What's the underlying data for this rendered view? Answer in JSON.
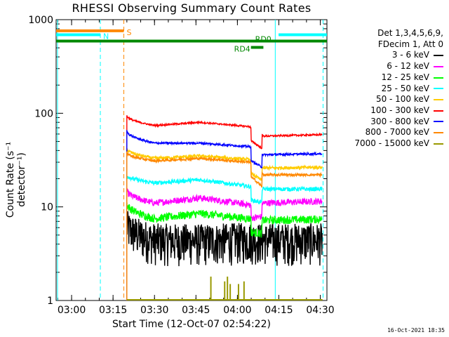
{
  "chart_data": {
    "type": "line",
    "title": "RHESSI Observing Summary Count Rates",
    "xlabel": "Start Time (12-Oct-07 02:54:22)",
    "ylabel": "Count Rate (s⁻¹ detector⁻¹)",
    "yscale": "log",
    "ylim": [
      1,
      1000
    ],
    "xlim_minutes_after_start": [
      0,
      98
    ],
    "x_ticks": [
      "03:00",
      "03:15",
      "03:30",
      "03:45",
      "04:00",
      "04:15",
      "04:30"
    ],
    "x_tick_minutes": [
      5.6,
      20.6,
      35.6,
      50.6,
      65.6,
      80.6,
      95.6
    ],
    "y_ticks": [
      "1",
      "10",
      "100",
      "1000"
    ],
    "y_tick_values": [
      1,
      10,
      100,
      1000
    ],
    "legend_header": [
      "Det 1,3,4,5,6,9,",
      "FDecim 1, Att 0"
    ],
    "legend_placement": "right",
    "data_start_minute": 25.6,
    "dip_range_minutes": [
      70.5,
      74.5
    ],
    "series": [
      {
        "name": "3 - 6 keV",
        "color": "#000000",
        "levels": [
          6.5,
          4.5,
          4.4,
          4.6,
          4.5,
          4.5
        ],
        "noise": 0.22
      },
      {
        "name": "6 - 12 keV",
        "color": "#ff00ff",
        "levels": [
          15,
          11,
          12.5,
          10.5,
          11,
          11.5
        ],
        "noise": 0.08
      },
      {
        "name": "12 - 25 keV",
        "color": "#00ff00",
        "levels": [
          11,
          7.5,
          8.5,
          7.5,
          7.2,
          7.4
        ],
        "noise": 0.1
      },
      {
        "name": "25 - 50 keV",
        "color": "#00ffff",
        "levels": [
          22,
          18,
          19.5,
          16.5,
          15.5,
          15.5
        ],
        "noise": 0.05
      },
      {
        "name": "50 - 100 keV",
        "color": "#ffcc00",
        "levels": [
          42,
          33,
          35,
          32,
          26,
          26.5
        ],
        "noise": 0.04
      },
      {
        "name": "100 - 300 keV",
        "color": "#ff0000",
        "levels": [
          95,
          74,
          80,
          72,
          57,
          59
        ],
        "noise": 0.02
      },
      {
        "name": "300 - 800 keV",
        "color": "#0000ff",
        "levels": [
          65,
          48,
          48,
          44,
          36,
          37
        ],
        "noise": 0.025
      },
      {
        "name": "800 - 7000 keV",
        "color": "#ff8800",
        "levels": [
          38,
          31,
          33,
          30,
          22,
          22
        ],
        "noise": 0.03
      },
      {
        "name": "7000 - 15000 keV",
        "color": "#999900",
        "levels": [
          0,
          0,
          0,
          0,
          0,
          0
        ],
        "noise": 0
      }
    ],
    "level_minutes": [
      25.6,
      35.6,
      52,
      70,
      75,
      96
    ],
    "spikes_7000_15000": [
      {
        "x": 56,
        "y": 1.8
      },
      {
        "x": 61,
        "y": 1.6
      },
      {
        "x": 62,
        "y": 1.8
      },
      {
        "x": 63,
        "y": 1.5
      },
      {
        "x": 66,
        "y": 1.5
      },
      {
        "x": 68,
        "y": 1.6
      }
    ],
    "vertical_markers": [
      {
        "x": 0.5,
        "color": "#00ffff",
        "style": "solid"
      },
      {
        "x": 16,
        "color": "#00ffff",
        "style": "dashed"
      },
      {
        "x": 24.5,
        "color": "#ff8800",
        "style": "dashed"
      },
      {
        "x": 79.3,
        "color": "#00ffff",
        "style": "solid"
      },
      {
        "x": 96.6,
        "color": "#00ffff",
        "style": "dashed"
      }
    ],
    "flag_bars": [
      {
        "label": "S",
        "color": "#ff8800",
        "x": [
          0,
          24.5
        ],
        "y": 760
      },
      {
        "label": "N",
        "color": "#00ffff",
        "x": [
          0,
          16
        ],
        "y": 690
      },
      {
        "label": "",
        "color": "#00ffff",
        "x": [
          80.5,
          98
        ],
        "y": 690
      },
      {
        "label": "RD0",
        "color": "#008800",
        "x": [
          0,
          98
        ],
        "y": 590
      },
      {
        "label": "RD4",
        "color": "#008800",
        "x": [
          70.5,
          75
        ],
        "y": 505
      }
    ]
  },
  "footer_timestamp": "16-Oct-2021 18:35"
}
